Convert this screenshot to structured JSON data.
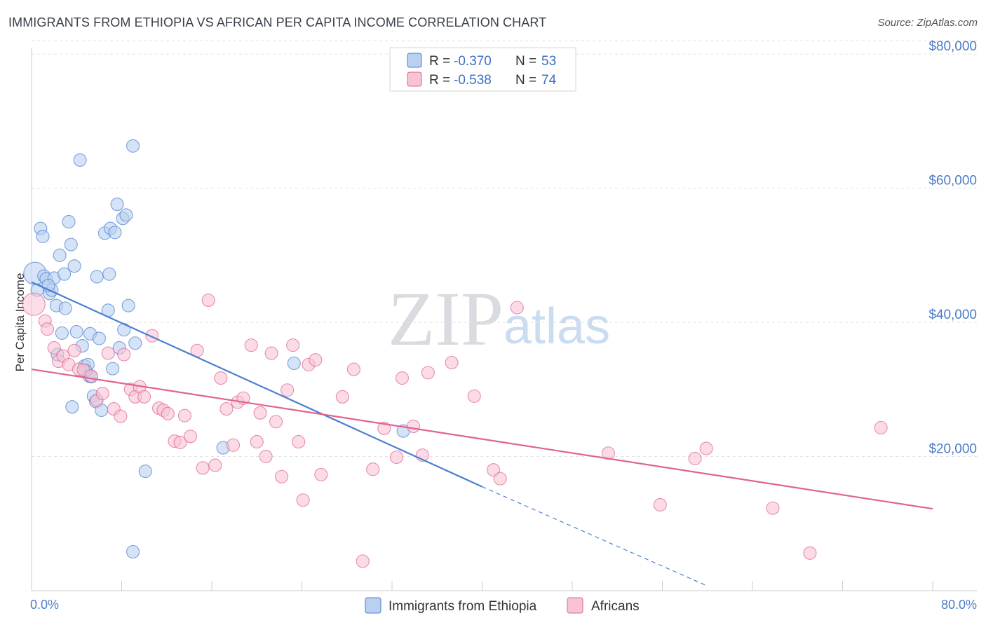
{
  "title": "IMMIGRANTS FROM ETHIOPIA VS AFRICAN PER CAPITA INCOME CORRELATION CHART",
  "source": "Source: ZipAtlas.com",
  "watermark": {
    "zip": "ZIP",
    "atlas": "atlas"
  },
  "colors": {
    "blue": "#4a7ed0",
    "blue_fill": "#b9d0f0",
    "pink": "#e0638f",
    "pink_fill": "#f7c3d5",
    "tick": "#4a7cc7"
  },
  "legend": {
    "r_label": "R =",
    "n_label": "N =",
    "rows": [
      {
        "r": "-0.370",
        "n": "53"
      },
      {
        "r": "-0.538",
        "n": "74"
      }
    ]
  },
  "chart_data": {
    "type": "scatter",
    "xlabel": "",
    "ylabel": "Per Capita Income",
    "xlim": [
      0,
      80
    ],
    "ylim": [
      0,
      82000
    ],
    "x_tick_labels": [
      "0.0%",
      "80.0%"
    ],
    "y_ticks": [
      {
        "value": 20000,
        "label": "$20,000"
      },
      {
        "value": 40000,
        "label": "$40,000"
      },
      {
        "value": 60000,
        "label": "$60,000"
      },
      {
        "value": 80000,
        "label": "$80,000"
      }
    ],
    "series": [
      {
        "name": "Immigrants from Ethiopia",
        "color": "blue",
        "trend": {
          "x0": 0,
          "y0": 46000,
          "x1": 40,
          "y1": 15500,
          "dash_to_x": 60,
          "dash_to_y": 700
        },
        "points": [
          [
            0.3,
            47300
          ],
          [
            0.5,
            44800
          ],
          [
            0.8,
            54000
          ],
          [
            1.0,
            52800
          ],
          [
            1.1,
            46900
          ],
          [
            1.3,
            46500
          ],
          [
            1.6,
            44300
          ],
          [
            1.8,
            44800
          ],
          [
            2.0,
            46600
          ],
          [
            2.2,
            42500
          ],
          [
            2.5,
            50000
          ],
          [
            2.7,
            38400
          ],
          [
            2.9,
            47200
          ],
          [
            3.0,
            42100
          ],
          [
            3.3,
            55000
          ],
          [
            3.5,
            51600
          ],
          [
            3.6,
            27400
          ],
          [
            3.8,
            48400
          ],
          [
            4.0,
            38600
          ],
          [
            4.3,
            64200
          ],
          [
            4.5,
            36500
          ],
          [
            4.7,
            33500
          ],
          [
            5.0,
            33700
          ],
          [
            5.1,
            32000
          ],
          [
            5.2,
            38300
          ],
          [
            5.3,
            31900
          ],
          [
            5.5,
            29000
          ],
          [
            5.7,
            28200
          ],
          [
            5.8,
            46800
          ],
          [
            6.0,
            37600
          ],
          [
            6.2,
            26900
          ],
          [
            6.5,
            53300
          ],
          [
            6.8,
            41800
          ],
          [
            6.9,
            47200
          ],
          [
            7.0,
            54000
          ],
          [
            7.2,
            33100
          ],
          [
            7.4,
            53400
          ],
          [
            7.6,
            57600
          ],
          [
            7.8,
            36200
          ],
          [
            8.1,
            55500
          ],
          [
            8.2,
            38900
          ],
          [
            8.4,
            56000
          ],
          [
            8.6,
            42500
          ],
          [
            9.0,
            66300
          ],
          [
            9.2,
            36900
          ],
          [
            10.1,
            17800
          ],
          [
            9.0,
            5800
          ],
          [
            23.3,
            33900
          ],
          [
            33.0,
            23800
          ],
          [
            17.0,
            21300
          ],
          [
            4.8,
            32800
          ],
          [
            2.3,
            35200
          ],
          [
            1.5,
            45500
          ]
        ]
      },
      {
        "name": "Africans",
        "color": "pink",
        "trend": {
          "x0": 0,
          "y0": 33000,
          "x1": 80,
          "y1": 12200
        },
        "points": [
          [
            0.2,
            42700
          ],
          [
            1.2,
            40200
          ],
          [
            1.4,
            39000
          ],
          [
            2.0,
            36200
          ],
          [
            2.4,
            34200
          ],
          [
            2.8,
            35000
          ],
          [
            3.3,
            33700
          ],
          [
            3.8,
            35800
          ],
          [
            4.2,
            33000
          ],
          [
            4.6,
            32900
          ],
          [
            5.3,
            32000
          ],
          [
            5.8,
            28400
          ],
          [
            6.3,
            29400
          ],
          [
            6.8,
            35400
          ],
          [
            7.3,
            27100
          ],
          [
            7.9,
            26000
          ],
          [
            8.2,
            35200
          ],
          [
            8.8,
            30000
          ],
          [
            9.2,
            28900
          ],
          [
            9.6,
            30400
          ],
          [
            10.0,
            28900
          ],
          [
            10.7,
            38000
          ],
          [
            11.3,
            27200
          ],
          [
            11.7,
            26900
          ],
          [
            12.1,
            26400
          ],
          [
            12.7,
            22300
          ],
          [
            13.2,
            22100
          ],
          [
            13.6,
            26100
          ],
          [
            14.1,
            23000
          ],
          [
            14.7,
            35800
          ],
          [
            15.2,
            18300
          ],
          [
            15.7,
            43300
          ],
          [
            16.3,
            18700
          ],
          [
            16.8,
            31700
          ],
          [
            17.3,
            27100
          ],
          [
            17.9,
            21700
          ],
          [
            18.3,
            28100
          ],
          [
            18.8,
            28700
          ],
          [
            19.5,
            36600
          ],
          [
            20.0,
            22200
          ],
          [
            20.3,
            26500
          ],
          [
            20.8,
            20000
          ],
          [
            21.3,
            35400
          ],
          [
            21.7,
            25200
          ],
          [
            22.2,
            17000
          ],
          [
            22.7,
            29900
          ],
          [
            23.2,
            36600
          ],
          [
            23.7,
            22200
          ],
          [
            24.1,
            13500
          ],
          [
            24.6,
            33700
          ],
          [
            25.2,
            34400
          ],
          [
            25.7,
            17300
          ],
          [
            27.6,
            28900
          ],
          [
            28.6,
            33000
          ],
          [
            29.4,
            4400
          ],
          [
            30.3,
            18100
          ],
          [
            31.3,
            24200
          ],
          [
            32.4,
            19900
          ],
          [
            32.9,
            31700
          ],
          [
            33.9,
            24500
          ],
          [
            34.7,
            20200
          ],
          [
            35.2,
            32500
          ],
          [
            37.3,
            34000
          ],
          [
            39.3,
            29000
          ],
          [
            41.0,
            18000
          ],
          [
            41.6,
            16700
          ],
          [
            43.1,
            42200
          ],
          [
            51.2,
            20500
          ],
          [
            55.8,
            12800
          ],
          [
            58.9,
            19700
          ],
          [
            59.9,
            21200
          ],
          [
            65.8,
            12300
          ],
          [
            69.1,
            5600
          ],
          [
            75.4,
            24300
          ]
        ]
      }
    ]
  }
}
